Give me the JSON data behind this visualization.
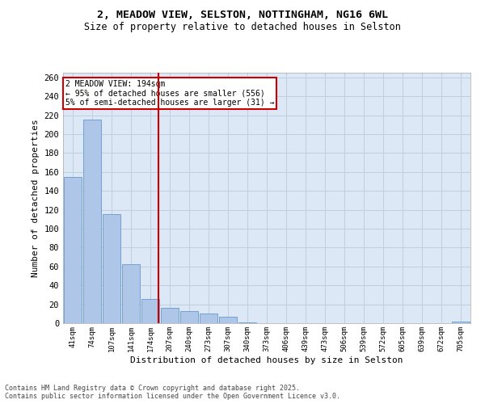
{
  "title_line1": "2, MEADOW VIEW, SELSTON, NOTTINGHAM, NG16 6WL",
  "title_line2": "Size of property relative to detached houses in Selston",
  "xlabel": "Distribution of detached houses by size in Selston",
  "ylabel": "Number of detached properties",
  "categories": [
    "41sqm",
    "74sqm",
    "107sqm",
    "141sqm",
    "174sqm",
    "207sqm",
    "240sqm",
    "273sqm",
    "307sqm",
    "340sqm",
    "373sqm",
    "406sqm",
    "439sqm",
    "473sqm",
    "506sqm",
    "539sqm",
    "572sqm",
    "605sqm",
    "639sqm",
    "672sqm",
    "705sqm"
  ],
  "values": [
    155,
    215,
    115,
    62,
    26,
    16,
    13,
    10,
    7,
    1,
    0,
    0,
    0,
    0,
    0,
    0,
    0,
    0,
    0,
    0,
    2
  ],
  "bar_color": "#aec6e8",
  "bar_edge_color": "#6699cc",
  "grid_color": "#c0cfe0",
  "background_color": "#dce8f5",
  "vline_color": "#cc0000",
  "vline_x": 4.43,
  "annotation_text": "2 MEADOW VIEW: 194sqm\n← 95% of detached houses are smaller (556)\n5% of semi-detached houses are larger (31) →",
  "annotation_box_facecolor": "#ffffff",
  "annotation_box_edgecolor": "#cc0000",
  "footer_line1": "Contains HM Land Registry data © Crown copyright and database right 2025.",
  "footer_line2": "Contains public sector information licensed under the Open Government Licence v3.0.",
  "ylim": [
    0,
    265
  ],
  "yticks": [
    0,
    20,
    40,
    60,
    80,
    100,
    120,
    140,
    160,
    180,
    200,
    220,
    240,
    260
  ],
  "title_fontsize": 9.5,
  "subtitle_fontsize": 8.5,
  "bar_width": 0.9
}
